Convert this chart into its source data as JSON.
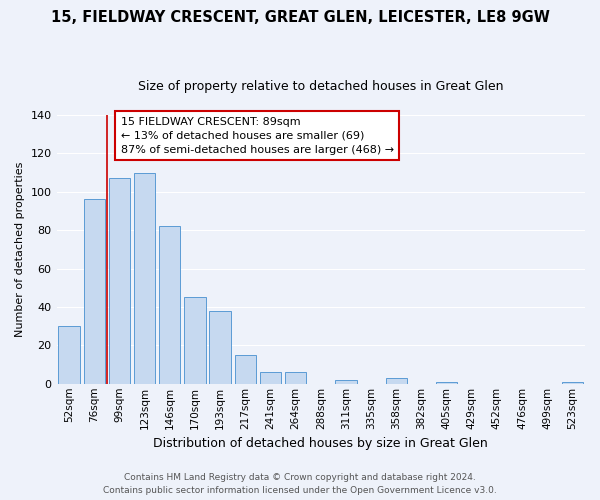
{
  "title": "15, FIELDWAY CRESCENT, GREAT GLEN, LEICESTER, LE8 9GW",
  "subtitle": "Size of property relative to detached houses in Great Glen",
  "xlabel": "Distribution of detached houses by size in Great Glen",
  "ylabel": "Number of detached properties",
  "bar_labels": [
    "52sqm",
    "76sqm",
    "99sqm",
    "123sqm",
    "146sqm",
    "170sqm",
    "193sqm",
    "217sqm",
    "241sqm",
    "264sqm",
    "288sqm",
    "311sqm",
    "335sqm",
    "358sqm",
    "382sqm",
    "405sqm",
    "429sqm",
    "452sqm",
    "476sqm",
    "499sqm",
    "523sqm"
  ],
  "bar_values": [
    30,
    96,
    107,
    110,
    82,
    45,
    38,
    15,
    6,
    6,
    0,
    2,
    0,
    3,
    0,
    1,
    0,
    0,
    0,
    0,
    1
  ],
  "bar_color": "#c6d9f0",
  "bar_edge_color": "#5b9bd5",
  "ylim": [
    0,
    140
  ],
  "yticks": [
    0,
    20,
    40,
    60,
    80,
    100,
    120,
    140
  ],
  "annotation_title": "15 FIELDWAY CRESCENT: 89sqm",
  "annotation_line1": "← 13% of detached houses are smaller (69)",
  "annotation_line2": "87% of semi-detached houses are larger (468) →",
  "footer1": "Contains HM Land Registry data © Crown copyright and database right 2024.",
  "footer2": "Contains public sector information licensed under the Open Government Licence v3.0.",
  "background_color": "#eef2fa",
  "grid_color": "#ffffff",
  "annotation_box_color": "#ffffff",
  "annotation_box_edge": "#cc0000",
  "red_line_color": "#cc0000",
  "red_line_x": 1.5
}
